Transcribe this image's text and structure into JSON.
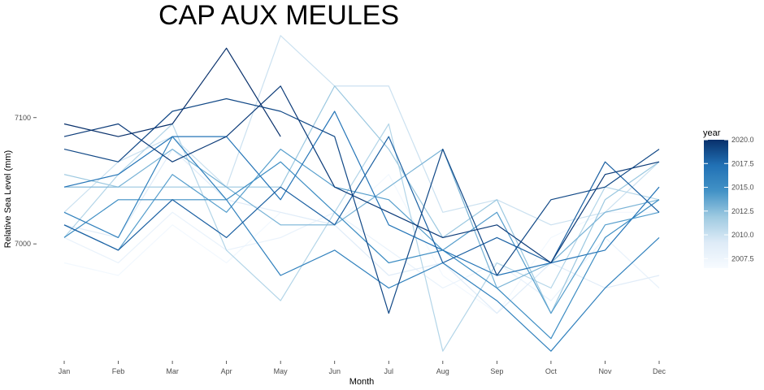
{
  "chart_data": {
    "type": "line",
    "title": "CAP AUX MEULES",
    "xlabel": "Month",
    "ylabel": "Relative Sea Level (mm)",
    "categories": [
      "Jan",
      "Feb",
      "Mar",
      "Apr",
      "May",
      "Jun",
      "Jul",
      "Aug",
      "Sep",
      "Oct",
      "Nov",
      "Dec"
    ],
    "ylim": [
      6910,
      7170
    ],
    "yticks": [
      7000,
      7100
    ],
    "grid": false,
    "legend": {
      "title": "year",
      "position": "right",
      "type": "colorbar",
      "range": [
        2006.5,
        2020
      ],
      "ticks": [
        2007.5,
        2010.0,
        2012.5,
        2015.0,
        2017.5,
        2020.0
      ],
      "colors": [
        "#f7fbff",
        "#deebf7",
        "#9ecae1",
        "#4292c6",
        "#2171b5",
        "#08306b"
      ]
    },
    "series": [
      {
        "year": 2007,
        "values": [
          6985,
          6975,
          7015,
          6985,
          7025,
          7015,
          7055,
          6975,
          6945,
          7005,
          7025,
          7025
        ]
      },
      {
        "year": 2008,
        "values": [
          7005,
          6985,
          7025,
          6995,
          7005,
          7025,
          6995,
          6965,
          6985,
          6955,
          7005,
          6965
        ]
      },
      {
        "year": 2009,
        "values": [
          7015,
          7005,
          7075,
          7035,
          7025,
          7015,
          6975,
          6985,
          6945,
          6985,
          6965,
          6975
        ]
      },
      {
        "year": 2010,
        "values": [
          7025,
          7065,
          7085,
          7045,
          7165,
          7125,
          7125,
          7025,
          7035,
          7015,
          7025,
          7065
        ]
      },
      {
        "year": 2011,
        "values": [
          7005,
          7055,
          7095,
          6995,
          6955,
          7025,
          7095,
          6915,
          6985,
          6965,
          7045,
          7035
        ]
      },
      {
        "year": 2012,
        "values": [
          7055,
          7045,
          7045,
          7045,
          7045,
          7125,
          7075,
          7005,
          7035,
          6945,
          7035,
          7065
        ]
      },
      {
        "year": 2013,
        "values": [
          7045,
          7045,
          7075,
          7045,
          7015,
          7015,
          7045,
          7075,
          6965,
          6985,
          7025,
          7035
        ]
      },
      {
        "year": 2014,
        "values": [
          7015,
          6995,
          7055,
          7025,
          7075,
          7045,
          7035,
          6995,
          7025,
          6945,
          7015,
          7025
        ]
      },
      {
        "year": 2015,
        "values": [
          7005,
          7035,
          7035,
          7035,
          7065,
          7025,
          6985,
          6995,
          6965,
          6925,
          7005,
          7035
        ]
      },
      {
        "year": 2016,
        "values": [
          7025,
          7005,
          7085,
          7035,
          6975,
          6995,
          6965,
          6985,
          6955,
          6915,
          6965,
          7005
        ]
      },
      {
        "year": 2017,
        "values": [
          7045,
          7055,
          7085,
          7085,
          7035,
          7105,
          7015,
          6995,
          6975,
          6985,
          6995,
          7045
        ]
      },
      {
        "year": 2018,
        "values": [
          7015,
          6995,
          7035,
          7005,
          7045,
          7015,
          7085,
          6985,
          7005,
          6985,
          7065,
          7025
        ]
      },
      {
        "year": 2019,
        "values": [
          7075,
          7065,
          7105,
          7115,
          7105,
          7085,
          6945,
          7075,
          6975,
          7035,
          7045,
          7075
        ]
      },
      {
        "year": 2019.5,
        "values": [
          7085,
          7095,
          7065,
          7085,
          7125,
          7045,
          7025,
          7005,
          7015,
          6985,
          7055,
          7065
        ]
      },
      {
        "year": 2020,
        "values": [
          7095,
          7085,
          7095,
          7155,
          7085,
          null,
          null,
          null,
          null,
          null,
          null,
          null
        ]
      }
    ]
  }
}
